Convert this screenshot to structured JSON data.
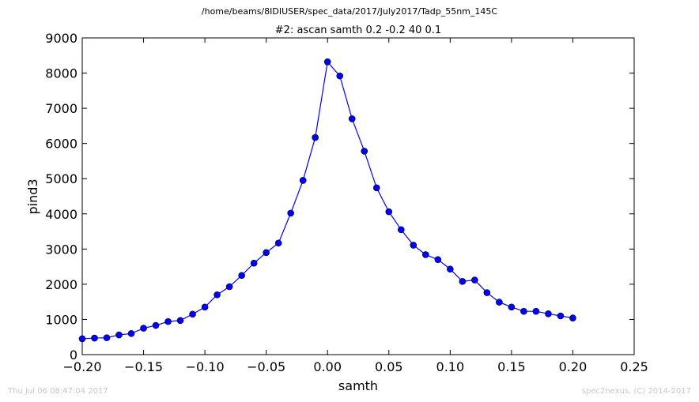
{
  "figure": {
    "suptitle": "/home/beams/8IDIUSER/spec_data/2017/July2017/Tadp_55nm_145C",
    "footer_left": "Thu Jul 06 08:47:04 2017",
    "footer_right": "spec2nexus, (C) 2014-2017"
  },
  "chart_data": {
    "type": "line",
    "title": "#2: ascan  samth 0.2 -0.2  40 0.1",
    "xlabel": "samth",
    "ylabel": "pind3",
    "xlim": [
      -0.2,
      0.25
    ],
    "ylim": [
      0,
      9000
    ],
    "xticks": [
      -0.2,
      -0.15,
      -0.1,
      -0.05,
      0.0,
      0.05,
      0.1,
      0.15,
      0.2,
      0.25
    ],
    "xtick_labels": [
      "−0.20",
      "−0.15",
      "−0.10",
      "−0.05",
      "0.00",
      "0.05",
      "0.10",
      "0.15",
      "0.20",
      "0.25"
    ],
    "yticks": [
      0,
      1000,
      2000,
      3000,
      4000,
      5000,
      6000,
      7000,
      8000,
      9000
    ],
    "ytick_labels": [
      "0",
      "1000",
      "2000",
      "3000",
      "4000",
      "5000",
      "6000",
      "7000",
      "8000",
      "9000"
    ],
    "grid": false,
    "series": [
      {
        "color": "#0000ff",
        "marker": "circle",
        "x": [
          -0.2,
          -0.19,
          -0.18,
          -0.17,
          -0.16,
          -0.15,
          -0.14,
          -0.13,
          -0.12,
          -0.11,
          -0.1,
          -0.09,
          -0.08,
          -0.07,
          -0.06,
          -0.05,
          -0.04,
          -0.03,
          -0.02,
          -0.01,
          0.0,
          0.01,
          0.02,
          0.03,
          0.04,
          0.05,
          0.06,
          0.07,
          0.08,
          0.09,
          0.1,
          0.11,
          0.12,
          0.13,
          0.14,
          0.15,
          0.16,
          0.17,
          0.18,
          0.19,
          0.2
        ],
        "y": [
          450,
          470,
          480,
          560,
          600,
          750,
          830,
          940,
          970,
          1150,
          1350,
          1700,
          1930,
          2250,
          2600,
          2900,
          3170,
          4020,
          4950,
          6170,
          8320,
          7920,
          6700,
          5780,
          4740,
          4060,
          3550,
          3110,
          2840,
          2700,
          2430,
          2080,
          2120,
          1760,
          1490,
          1350,
          1230,
          1230,
          1160,
          1100,
          1040
        ]
      }
    ]
  }
}
